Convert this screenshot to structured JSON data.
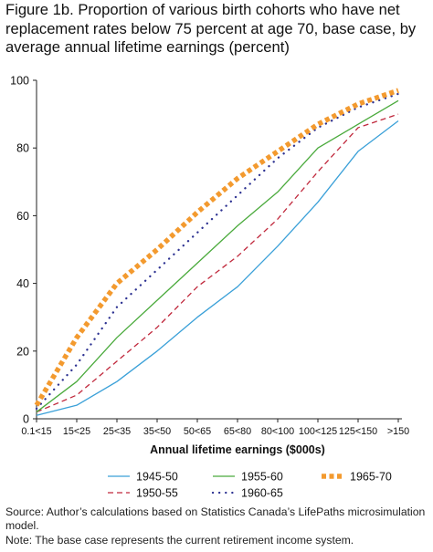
{
  "title": "Figure 1b. Proportion of various birth cohorts who have net replacement rates below 75 percent at age 70, base case, by average annual lifetime earnings (percent)",
  "source_note": "Source: Author’s calculations based on Statistics Canada’s LifePaths microsimulation model.",
  "base_note": "Note: The base case represents the current retirement income system.",
  "chart_data": {
    "type": "line",
    "title": "Figure 1b. Proportion of various birth cohorts who have net replacement rates below 75 percent at age 70, base case, by average annual lifetime earnings (percent)",
    "xlabel": "Annual lifetime earnings ($000s)",
    "ylabel": "",
    "categories": [
      "0.1<15",
      "15<25",
      "25<35",
      "35<50",
      "50<65",
      "65<80",
      "80<100",
      "100<125",
      "125<150",
      ">150"
    ],
    "ylim": [
      0,
      100
    ],
    "yticks": [
      0,
      20,
      40,
      60,
      80,
      100
    ],
    "grid": false,
    "legend_position": "bottom",
    "series": [
      {
        "name": "1945-50",
        "color": "#3aa0d8",
        "style": "solid",
        "values": [
          1,
          4,
          11,
          20,
          30,
          39,
          51,
          64,
          79,
          88
        ]
      },
      {
        "name": "1950-55",
        "color": "#c0283c",
        "style": "dashed",
        "values": [
          2,
          7,
          17,
          27,
          39,
          48,
          59,
          73,
          86,
          90
        ]
      },
      {
        "name": "1955-60",
        "color": "#4aaa3c",
        "style": "solid",
        "values": [
          2,
          11,
          24,
          35,
          46,
          57,
          67,
          80,
          87,
          94
        ]
      },
      {
        "name": "1960-65",
        "color": "#2e3392",
        "style": "dotted",
        "values": [
          3,
          16,
          33,
          44,
          55,
          66,
          77,
          86,
          92,
          96
        ]
      },
      {
        "name": "1965-70",
        "color": "#f39a2f",
        "style": "heavy-dotted",
        "values": [
          4,
          24,
          40,
          50,
          61,
          71,
          79,
          87,
          93,
          97
        ]
      }
    ]
  }
}
